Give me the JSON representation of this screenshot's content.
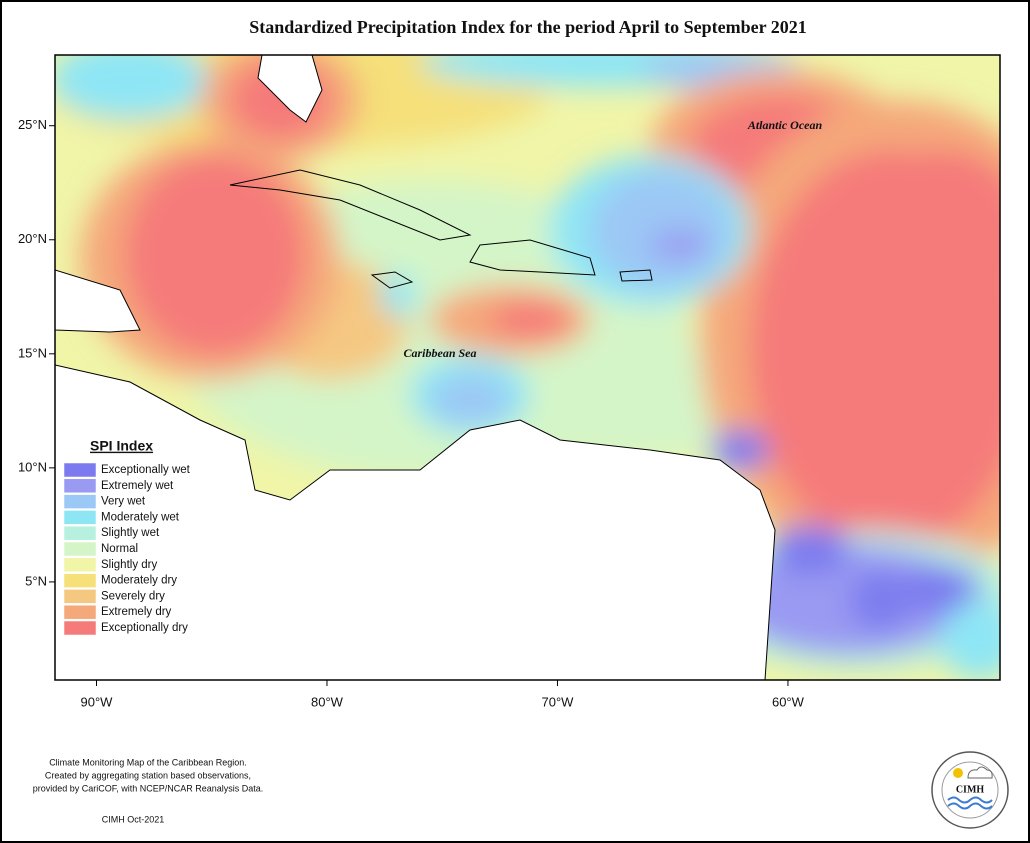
{
  "title": "Standardized Precipitation Index for the period April to September 2021",
  "map": {
    "xlim": [
      -91.8,
      -50.8
    ],
    "ylim": [
      0.7,
      28.1
    ],
    "xticks": [
      {
        "value": -90,
        "label": "90°W"
      },
      {
        "value": -80,
        "label": "80°W"
      },
      {
        "value": -70,
        "label": "70°W"
      },
      {
        "value": -60,
        "label": "60°W"
      }
    ],
    "yticks": [
      {
        "value": 5,
        "label": "5°N"
      },
      {
        "value": 10,
        "label": "10°N"
      },
      {
        "value": 15,
        "label": "15°N"
      },
      {
        "value": 20,
        "label": "20°N"
      },
      {
        "value": 25,
        "label": "25°N"
      }
    ],
    "labels": [
      "Atlantic Ocean",
      "Caribbean Sea"
    ]
  },
  "legend": {
    "title": "SPI Index",
    "items": [
      {
        "label": "Exceptionally wet",
        "color": "#7b7bef"
      },
      {
        "label": "Extremely wet",
        "color": "#9a9af2"
      },
      {
        "label": "Very wet",
        "color": "#9cc8f5"
      },
      {
        "label": "Moderately wet",
        "color": "#8ee6f5"
      },
      {
        "label": "Slightly wet",
        "color": "#b8f0e0"
      },
      {
        "label": "Normal",
        "color": "#d4f5c8"
      },
      {
        "label": "Slightly dry",
        "color": "#f0f5a8"
      },
      {
        "label": "Moderately dry",
        "color": "#f5e07a"
      },
      {
        "label": "Severely dry",
        "color": "#f5c882"
      },
      {
        "label": "Extremely dry",
        "color": "#f5a87a"
      },
      {
        "label": "Exceptionally dry",
        "color": "#f57a7a"
      }
    ]
  },
  "footnote": {
    "lines": [
      "Climate Monitoring Map of the Caribbean Region.",
      "Created by aggregating station based observations,",
      "provided by CariCOF, with NCEP/NCAR Reanalysis Data."
    ],
    "credit": "CIMH Oct-2021"
  },
  "logo": {
    "text": "CIMH"
  }
}
